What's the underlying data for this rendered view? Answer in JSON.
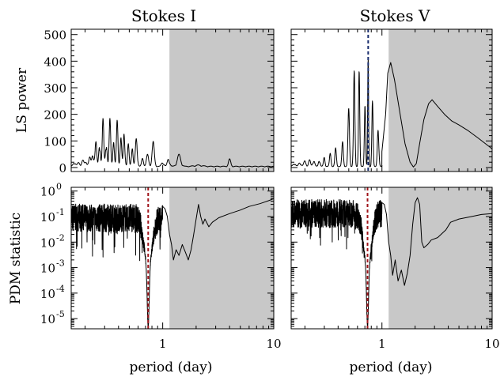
{
  "chart_data": [
    {
      "id": "ls_I",
      "type": "line",
      "title": "Stokes I",
      "ylabel": "LS power",
      "xlabel": "",
      "x_scale": "log",
      "y_scale": "linear",
      "xlim": [
        0.15,
        10
      ],
      "ylim": [
        -15,
        520
      ],
      "yticks": [
        0,
        100,
        200,
        300,
        400,
        500
      ],
      "ytick_labels": [
        "0",
        "100",
        "200",
        "300",
        "400",
        "500"
      ],
      "shaded_x_from": 1.15,
      "peaks": [
        {
          "x": 0.16,
          "y": 20,
          "w": 0.03
        },
        {
          "x": 0.175,
          "y": 15,
          "w": 0.03
        },
        {
          "x": 0.19,
          "y": 25,
          "w": 0.03
        },
        {
          "x": 0.205,
          "y": 20,
          "w": 0.03
        },
        {
          "x": 0.22,
          "y": 35,
          "w": 0.025
        },
        {
          "x": 0.235,
          "y": 60,
          "w": 0.025
        },
        {
          "x": 0.25,
          "y": 95,
          "w": 0.022
        },
        {
          "x": 0.27,
          "y": 125,
          "w": 0.02
        },
        {
          "x": 0.29,
          "y": 180,
          "w": 0.02
        },
        {
          "x": 0.31,
          "y": 130,
          "w": 0.02
        },
        {
          "x": 0.335,
          "y": 185,
          "w": 0.02
        },
        {
          "x": 0.36,
          "y": 120,
          "w": 0.02
        },
        {
          "x": 0.39,
          "y": 205,
          "w": 0.02
        },
        {
          "x": 0.42,
          "y": 115,
          "w": 0.02
        },
        {
          "x": 0.45,
          "y": 165,
          "w": 0.02
        },
        {
          "x": 0.49,
          "y": 85,
          "w": 0.02
        },
        {
          "x": 0.53,
          "y": 100,
          "w": 0.02
        },
        {
          "x": 0.58,
          "y": 125,
          "w": 0.025
        },
        {
          "x": 0.66,
          "y": 35,
          "w": 0.025
        },
        {
          "x": 0.73,
          "y": 45,
          "w": 0.03
        },
        {
          "x": 0.82,
          "y": 95,
          "w": 0.03
        },
        {
          "x": 1.0,
          "y": 20,
          "w": 0.03
        },
        {
          "x": 1.13,
          "y": 35,
          "w": 0.03
        },
        {
          "x": 1.4,
          "y": 45,
          "w": 0.05
        },
        {
          "x": 2.1,
          "y": 5,
          "w": 0.1
        },
        {
          "x": 4.0,
          "y": 28,
          "w": 0.03
        }
      ],
      "baseline": 5
    },
    {
      "id": "ls_V",
      "type": "line",
      "title": "Stokes V",
      "ylabel": "",
      "xlabel": "",
      "x_scale": "log",
      "y_scale": "linear",
      "xlim": [
        0.15,
        10
      ],
      "ylim": [
        -15,
        520
      ],
      "yticks": [
        0,
        100,
        200,
        300,
        400,
        500
      ],
      "shaded_x_from": 1.15,
      "marker_x": 0.75,
      "marker_color": "#1a2e6e",
      "peaks": [
        {
          "x": 0.16,
          "y": 15,
          "w": 0.03
        },
        {
          "x": 0.18,
          "y": 18,
          "w": 0.03
        },
        {
          "x": 0.2,
          "y": 22,
          "w": 0.03
        },
        {
          "x": 0.22,
          "y": 25,
          "w": 0.025
        },
        {
          "x": 0.24,
          "y": 30,
          "w": 0.025
        },
        {
          "x": 0.27,
          "y": 35,
          "w": 0.02
        },
        {
          "x": 0.3,
          "y": 40,
          "w": 0.02
        },
        {
          "x": 0.34,
          "y": 55,
          "w": 0.02
        },
        {
          "x": 0.38,
          "y": 70,
          "w": 0.02
        },
        {
          "x": 0.44,
          "y": 100,
          "w": 0.02
        },
        {
          "x": 0.5,
          "y": 230,
          "w": 0.02
        },
        {
          "x": 0.56,
          "y": 360,
          "w": 0.018
        },
        {
          "x": 0.62,
          "y": 400,
          "w": 0.016
        },
        {
          "x": 0.7,
          "y": 280,
          "w": 0.016
        },
        {
          "x": 0.75,
          "y": 470,
          "w": 0.012
        },
        {
          "x": 0.82,
          "y": 250,
          "w": 0.016
        },
        {
          "x": 0.92,
          "y": 150,
          "w": 0.02
        },
        {
          "x": 1.05,
          "y": 100,
          "w": 0.025
        }
      ],
      "smooth_tail": [
        [
          1.0,
          60
        ],
        [
          1.08,
          200
        ],
        [
          1.13,
          355
        ],
        [
          1.2,
          395
        ],
        [
          1.3,
          330
        ],
        [
          1.45,
          210
        ],
        [
          1.62,
          90
        ],
        [
          1.8,
          20
        ],
        [
          1.93,
          2
        ],
        [
          2.05,
          15
        ],
        [
          2.2,
          90
        ],
        [
          2.4,
          180
        ],
        [
          2.65,
          240
        ],
        [
          2.85,
          255
        ],
        [
          3.2,
          230
        ],
        [
          3.7,
          200
        ],
        [
          4.3,
          175
        ],
        [
          5.0,
          160
        ],
        [
          6.0,
          140
        ],
        [
          7.5,
          110
        ],
        [
          9.0,
          85
        ],
        [
          10.0,
          70
        ]
      ],
      "baseline": 5
    },
    {
      "id": "pdm_I",
      "type": "line",
      "title": "",
      "ylabel": "PDM statistic",
      "xlabel": "period (day)",
      "x_scale": "log",
      "y_scale": "log",
      "xlim": [
        0.15,
        10
      ],
      "ylim": [
        4e-06,
        1.4
      ],
      "yticks": [
        1e-05,
        0.0001,
        0.001,
        0.01,
        0.1,
        1
      ],
      "ytick_labels": [
        "10",
        "10",
        "10",
        "10",
        "10",
        "10"
      ],
      "ytick_exponents": [
        "-5",
        "-4",
        "-3",
        "-2",
        "-1",
        "0"
      ],
      "xticks": [
        1,
        10
      ],
      "xtick_labels": [
        "1",
        "10"
      ],
      "shaded_x_from": 1.15,
      "marker_x": 0.74,
      "marker_color": "#a0141a",
      "noise_level": 0.1,
      "noise_to": 1.0,
      "dip_x": 0.74,
      "dip_y": 5e-06,
      "smooth_tail": [
        [
          1.0,
          0.25
        ],
        [
          1.05,
          0.2
        ],
        [
          1.1,
          0.1
        ],
        [
          1.15,
          0.02
        ],
        [
          1.2,
          0.008
        ],
        [
          1.25,
          0.002
        ],
        [
          1.32,
          0.005
        ],
        [
          1.4,
          0.003
        ],
        [
          1.5,
          0.008
        ],
        [
          1.6,
          0.004
        ],
        [
          1.7,
          0.002
        ],
        [
          1.8,
          0.005
        ],
        [
          1.9,
          0.02
        ],
        [
          2.0,
          0.08
        ],
        [
          2.1,
          0.3
        ],
        [
          2.2,
          0.1
        ],
        [
          2.3,
          0.05
        ],
        [
          2.4,
          0.08
        ],
        [
          2.6,
          0.04
        ],
        [
          2.8,
          0.06
        ],
        [
          3.2,
          0.09
        ],
        [
          4.0,
          0.13
        ],
        [
          5.0,
          0.18
        ],
        [
          6.0,
          0.25
        ],
        [
          7.5,
          0.32
        ],
        [
          9.0,
          0.42
        ],
        [
          10.0,
          0.5
        ]
      ]
    },
    {
      "id": "pdm_V",
      "type": "line",
      "title": "",
      "ylabel": "",
      "xlabel": "period (day)",
      "x_scale": "log",
      "y_scale": "log",
      "xlim": [
        0.15,
        10
      ],
      "ylim": [
        4e-06,
        1.4
      ],
      "yticks": [
        1e-05,
        0.0001,
        0.001,
        0.01,
        0.1,
        1
      ],
      "xticks": [
        1,
        10
      ],
      "xtick_labels": [
        "1",
        "10"
      ],
      "shaded_x_from": 1.15,
      "marker_x": 0.74,
      "marker_color": "#a0141a",
      "noise_level": 0.15,
      "noise_to": 1.0,
      "dip_x": 0.74,
      "dip_y": 5e-06,
      "smooth_tail": [
        [
          1.0,
          0.35
        ],
        [
          1.05,
          0.3
        ],
        [
          1.1,
          0.12
        ],
        [
          1.15,
          0.01
        ],
        [
          1.2,
          0.003
        ],
        [
          1.25,
          0.0005
        ],
        [
          1.32,
          0.002
        ],
        [
          1.4,
          0.0003
        ],
        [
          1.5,
          0.0008
        ],
        [
          1.6,
          0.0002
        ],
        [
          1.7,
          0.0006
        ],
        [
          1.8,
          0.003
        ],
        [
          1.9,
          0.05
        ],
        [
          2.0,
          0.35
        ],
        [
          2.1,
          0.55
        ],
        [
          2.2,
          0.3
        ],
        [
          2.3,
          0.01
        ],
        [
          2.4,
          0.006
        ],
        [
          2.6,
          0.008
        ],
        [
          2.8,
          0.012
        ],
        [
          3.2,
          0.015
        ],
        [
          3.8,
          0.03
        ],
        [
          4.2,
          0.06
        ],
        [
          5.0,
          0.08
        ],
        [
          6.5,
          0.1
        ],
        [
          8.0,
          0.12
        ],
        [
          10.0,
          0.13
        ]
      ]
    }
  ]
}
